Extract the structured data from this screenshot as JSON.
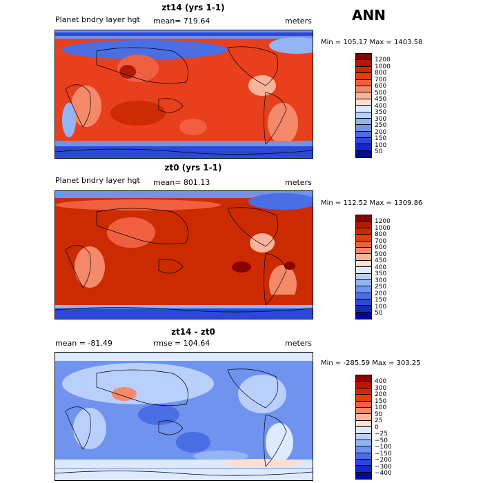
{
  "season": "ANN",
  "panels": [
    {
      "title": "zt14 (yrs 1-1)",
      "left_label": "Planet bndry layer hgt",
      "mid_label": "mean= 719.64",
      "right_label": "meters",
      "minmax": "Min = 105.17 Max = 1403.58",
      "levels": [
        "1200",
        "1000",
        "800",
        "700",
        "600",
        "500",
        "450",
        "400",
        "350",
        "300",
        "250",
        "200",
        "150",
        "100",
        "50"
      ],
      "colors": [
        "#8b0000",
        "#b31a00",
        "#cc2a00",
        "#e63b10",
        "#f06040",
        "#f58a6a",
        "#f8b49a",
        "#fbe0d0",
        "#ddeaff",
        "#b8d0fb",
        "#95b4f6",
        "#6f93ee",
        "#4a6ee4",
        "#2b49d6",
        "#1428c4",
        "#000a96"
      ]
    },
    {
      "title": "zt0 (yrs 1-1)",
      "left_label": "Planet bndry layer hgt",
      "mid_label": "mean= 801.13",
      "right_label": "meters",
      "minmax": "Min = 112.52 Max = 1309.86",
      "levels": [
        "1200",
        "1000",
        "800",
        "700",
        "600",
        "500",
        "450",
        "400",
        "350",
        "300",
        "250",
        "200",
        "150",
        "100",
        "50"
      ],
      "colors": [
        "#8b0000",
        "#b31a00",
        "#cc2a00",
        "#e63b10",
        "#f06040",
        "#f58a6a",
        "#f8b49a",
        "#fbe0d0",
        "#ddeaff",
        "#b8d0fb",
        "#95b4f6",
        "#6f93ee",
        "#4a6ee4",
        "#2b49d6",
        "#1428c4",
        "#000a96"
      ]
    },
    {
      "title": "zt14 - zt0",
      "left_label": "mean = -81.49",
      "mid_label": "rmse = 104.64",
      "right_label": "meters",
      "minmax": "Min = -285.59 Max = 303.25",
      "levels": [
        "400",
        "300",
        "200",
        "150",
        "100",
        "50",
        "25",
        "0",
        "−25",
        "−50",
        "−100",
        "−150",
        "−200",
        "−300",
        "−400"
      ],
      "colors": [
        "#8b0000",
        "#b31a00",
        "#cc2a00",
        "#e63b10",
        "#f06040",
        "#f58a6a",
        "#f8b49a",
        "#fbe0d0",
        "#ddeaff",
        "#b8d0fb",
        "#95b4f6",
        "#6f93ee",
        "#4a6ee4",
        "#2b49d6",
        "#1428c4",
        "#000a96"
      ]
    }
  ]
}
